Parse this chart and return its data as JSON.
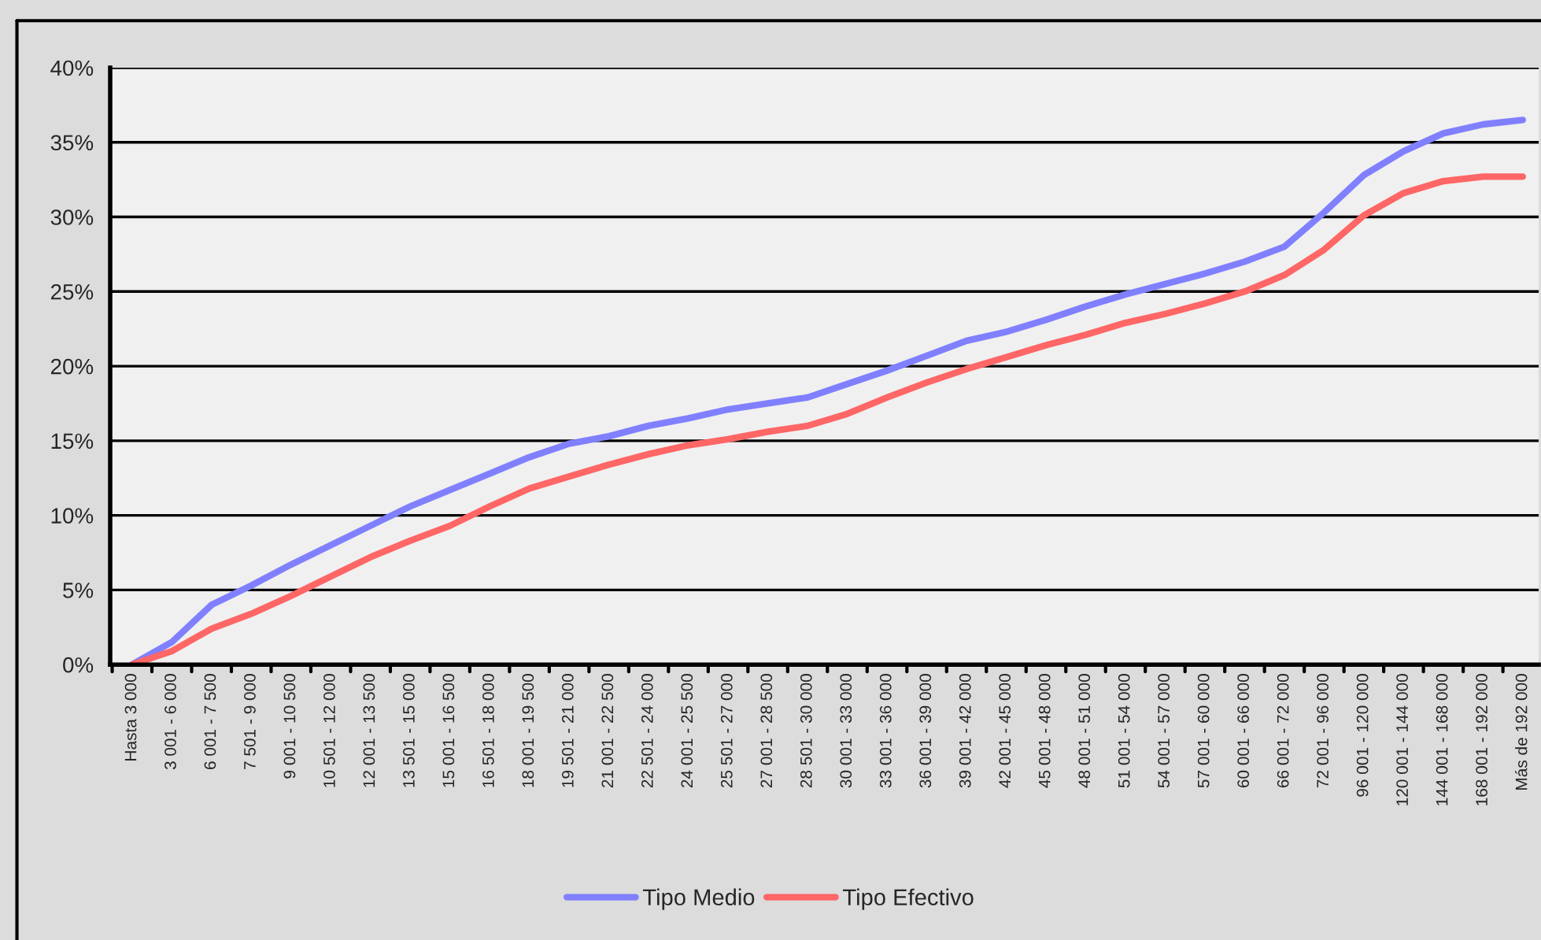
{
  "chart_data": {
    "type": "line",
    "categories": [
      "Hasta 3 000",
      "3 001 - 6 000",
      "6 001 - 7 500",
      "7 501 - 9 000",
      "9 001 - 10 500",
      "10 501 - 12 000",
      "12 001 - 13 500",
      "13 501 - 15 000",
      "15 001 - 16 500",
      "16 501 - 18 000",
      "18 001 - 19 500",
      "19 501 - 21 000",
      "21 001 - 22 500",
      "22 501 - 24 000",
      "24 001 - 25 500",
      "25 501 - 27 000",
      "27 001 - 28 500",
      "28 501 - 30 000",
      "30 001 - 33 000",
      "33 001 - 36 000",
      "36 001 - 39 000",
      "39 001 - 42 000",
      "42 001 - 45 000",
      "45 001 - 48 000",
      "48 001 - 51 000",
      "51 001 - 54 000",
      "54 001 - 57 000",
      "57 001 - 60 000",
      "60 001 - 66 000",
      "66 001 - 72 000",
      "72 001 - 96 000",
      "96 001 - 120 000",
      "120 001 - 144 000",
      "144 001 - 168 000",
      "168 001 - 192 000",
      "Más de 192 000"
    ],
    "series": [
      {
        "name": "Tipo Medio",
        "color": "#8080ff",
        "values": [
          0,
          1.5,
          4,
          5.3,
          6.7,
          8.0,
          9.3,
          10.6,
          11.7,
          12.8,
          13.9,
          14.8,
          15.3,
          16.0,
          16.5,
          17.1,
          17.5,
          17.9,
          18.8,
          19.7,
          20.7,
          21.7,
          22.3,
          23.1,
          24.0,
          24.8,
          25.5,
          26.2,
          27.0,
          28.0,
          30.3,
          32.8,
          34.4,
          35.6,
          36.2,
          36.5
        ]
      },
      {
        "name": "Tipo Efectivo",
        "color": "#ff6666",
        "values": [
          0,
          0.9,
          2.4,
          3.4,
          4.6,
          5.9,
          7.2,
          8.3,
          9.3,
          10.6,
          11.8,
          12.6,
          13.4,
          14.1,
          14.7,
          15.1,
          15.6,
          16.0,
          16.8,
          17.9,
          18.9,
          19.8,
          20.6,
          21.4,
          22.1,
          22.9,
          23.5,
          24.2,
          25.0,
          26.1,
          27.8,
          30.1,
          31.6,
          32.4,
          32.7,
          32.7
        ]
      }
    ],
    "ylim": [
      0,
      40
    ],
    "yticks": [
      {
        "value": 0,
        "label": "0%"
      },
      {
        "value": 5,
        "label": "5%"
      },
      {
        "value": 10,
        "label": "10%"
      },
      {
        "value": 15,
        "label": "15%"
      },
      {
        "value": 20,
        "label": "20%"
      },
      {
        "value": 25,
        "label": "25%"
      },
      {
        "value": 30,
        "label": "30%"
      },
      {
        "value": 35,
        "label": "35%"
      },
      {
        "value": 40,
        "label": "40%"
      }
    ],
    "grid": "y",
    "legend": "bottom",
    "marker": "none",
    "line_style": "solid"
  }
}
